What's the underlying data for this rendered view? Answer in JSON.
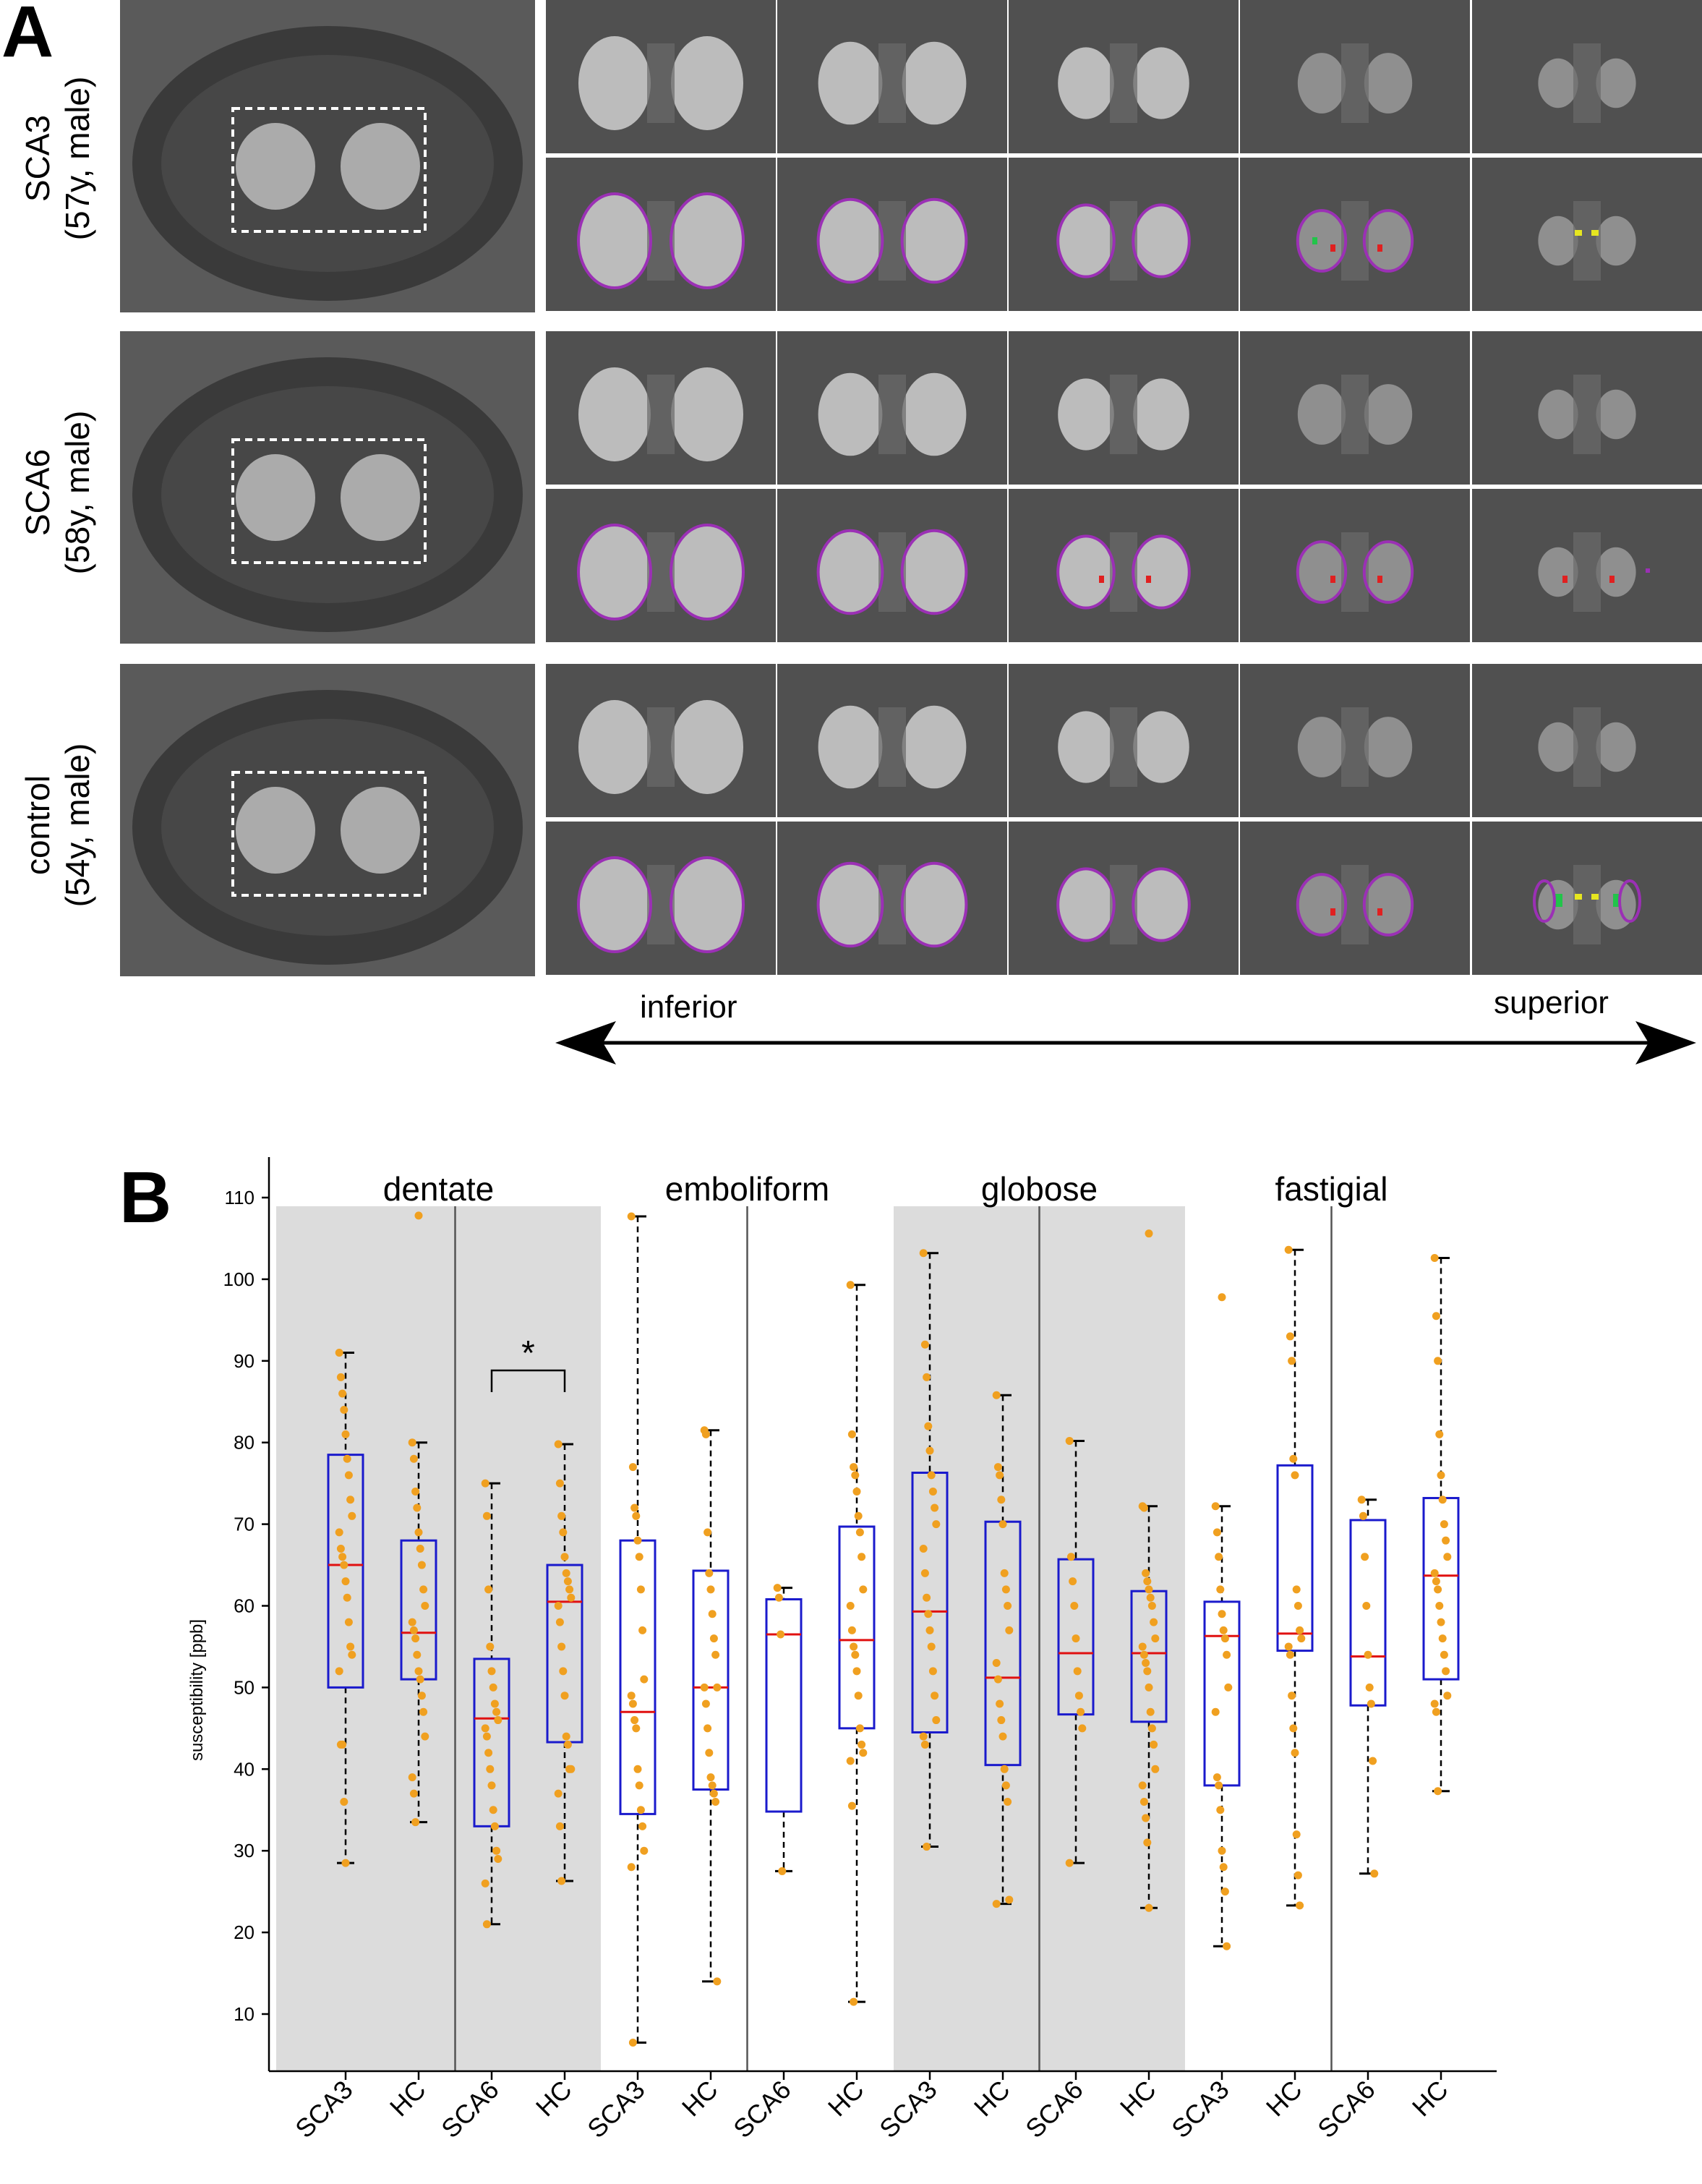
{
  "panel_a": {
    "letter": "A",
    "rows": [
      {
        "line1": "SCA3",
        "line2": "(57y, male)"
      },
      {
        "line1": "SCA6",
        "line2": "(58y, male)"
      },
      {
        "line1": "control",
        "line2": "(54y, male)"
      }
    ],
    "direction": {
      "left": "inferior",
      "right": "superior"
    },
    "colors": {
      "dentate": "#9b30b5",
      "emboliform": "#e02020",
      "globose": "#22c44a",
      "fastigial": "#e6e620"
    }
  },
  "panel_b": {
    "letter": "B"
  },
  "chart_data": {
    "type": "box",
    "ylabel": "susceptibility [ppb]",
    "ylim": [
      0,
      115
    ],
    "yticks": [
      10,
      20,
      30,
      40,
      50,
      60,
      70,
      80,
      90,
      100,
      110
    ],
    "categories": [
      "SCA3",
      "HC",
      "SCA6",
      "HC",
      "SCA3",
      "HC",
      "SCA6",
      "HC",
      "SCA3",
      "HC",
      "SCA6",
      "HC",
      "SCA3",
      "HC",
      "SCA6",
      "HC"
    ],
    "regions": [
      {
        "name": "dentate",
        "shaded": true
      },
      {
        "name": "emboliform",
        "shaded": false
      },
      {
        "name": "globose",
        "shaded": true
      },
      {
        "name": "fastigial",
        "shaded": false
      }
    ],
    "significance": {
      "between": [
        2,
        3
      ],
      "label": "*"
    },
    "boxes": [
      {
        "min": 28.5,
        "q1": 50,
        "median": 65,
        "q3": 78.5,
        "max": 91,
        "points": [
          91,
          88,
          86,
          84,
          81,
          78,
          76,
          73,
          71,
          69,
          67,
          66,
          65,
          63,
          61,
          58,
          55,
          54,
          52,
          43,
          43,
          36,
          28.5
        ]
      },
      {
        "min": 33.5,
        "q1": 51,
        "median": 56.7,
        "q3": 68,
        "max": 80,
        "outliers": [
          107.8
        ],
        "points": [
          80,
          78,
          74,
          72,
          69,
          67,
          65,
          62,
          60,
          58,
          57,
          56,
          54,
          52,
          51,
          49,
          47,
          44,
          39,
          37,
          33.5
        ]
      },
      {
        "min": 21,
        "q1": 33,
        "median": 46.2,
        "q3": 53.5,
        "max": 75,
        "points": [
          75,
          71,
          62,
          55,
          52,
          50,
          48,
          47,
          46,
          45,
          44,
          42,
          40,
          38,
          35,
          33,
          30,
          29,
          26,
          21
        ]
      },
      {
        "min": 26.3,
        "q1": 43.3,
        "median": 60.5,
        "q3": 65,
        "max": 79.8,
        "points": [
          79.8,
          75,
          71,
          69,
          66,
          64,
          63,
          62,
          61,
          60,
          58,
          55,
          52,
          49,
          44,
          43,
          40,
          40,
          37,
          33,
          26.3
        ]
      },
      {
        "min": 6.5,
        "q1": 34.5,
        "median": 47,
        "q3": 68,
        "max": 107.7,
        "points": [
          107.7,
          77,
          72,
          71,
          68,
          66,
          62,
          57,
          51,
          49,
          48,
          46,
          45,
          40,
          38,
          35,
          33,
          30,
          28,
          6.5
        ]
      },
      {
        "min": 14,
        "q1": 37.5,
        "median": 50,
        "q3": 64.3,
        "max": 81.5,
        "points": [
          81.5,
          81,
          69,
          64,
          62,
          59,
          56,
          54,
          50,
          50,
          48,
          45,
          42,
          39,
          38,
          37,
          36,
          14
        ]
      },
      {
        "min": 27.5,
        "q1": 34.8,
        "median": 56.5,
        "q3": 60.8,
        "max": 62.2,
        "points": [
          62.2,
          61,
          56.5,
          27.5
        ]
      },
      {
        "min": 11.5,
        "q1": 45,
        "median": 55.8,
        "q3": 69.7,
        "max": 99.3,
        "points": [
          99.3,
          81,
          77,
          76,
          74,
          71,
          69,
          66,
          62,
          60,
          57,
          55,
          54,
          52,
          49,
          45,
          43,
          42,
          41,
          35.5,
          11.5
        ]
      },
      {
        "min": 30.5,
        "q1": 44.5,
        "median": 59.3,
        "q3": 76.3,
        "max": 103.2,
        "points": [
          103.2,
          92,
          88,
          82,
          79,
          76,
          74,
          72,
          70,
          67,
          64,
          61,
          59,
          57,
          55,
          52,
          49,
          46,
          44,
          43,
          30.5
        ]
      },
      {
        "min": 23.5,
        "q1": 40.5,
        "median": 51.2,
        "q3": 70.3,
        "max": 85.8,
        "points": [
          85.8,
          77,
          76,
          73,
          70,
          64,
          62,
          60,
          57,
          53,
          51,
          48,
          46,
          44,
          40,
          38,
          36,
          24,
          23.5
        ]
      },
      {
        "min": 28.5,
        "q1": 46.7,
        "median": 54.2,
        "q3": 65.7,
        "max": 80.2,
        "points": [
          80.2,
          66,
          63,
          60,
          56,
          52,
          49,
          47,
          45,
          28.5
        ]
      },
      {
        "min": 23,
        "q1": 45.8,
        "median": 54.2,
        "q3": 61.8,
        "max": 72.2,
        "outliers": [
          105.6
        ],
        "points": [
          72.2,
          72,
          64,
          63,
          62,
          61,
          60,
          58,
          56,
          55,
          54,
          53,
          52,
          50,
          47,
          45,
          43,
          40,
          38,
          36,
          34,
          31,
          23
        ]
      },
      {
        "min": 18.3,
        "q1": 38,
        "median": 56.3,
        "q3": 60.5,
        "max": 72.2,
        "outliers": [
          97.8
        ],
        "points": [
          72.2,
          69,
          66,
          62,
          59,
          57,
          56,
          54,
          50,
          47,
          39,
          38,
          35,
          30,
          28,
          25,
          18.3
        ]
      },
      {
        "min": 23.3,
        "q1": 54.5,
        "median": 56.6,
        "q3": 77.2,
        "max": 103.6,
        "points": [
          103.6,
          93,
          90,
          78,
          76,
          62,
          60,
          57,
          56,
          55,
          54,
          49,
          45,
          42,
          32,
          27,
          23.3
        ]
      },
      {
        "min": 27.2,
        "q1": 47.8,
        "median": 53.8,
        "q3": 70.5,
        "max": 73,
        "points": [
          73,
          71,
          66,
          60,
          54,
          50,
          48,
          41,
          27.2
        ]
      },
      {
        "min": 37.3,
        "q1": 51,
        "median": 63.7,
        "q3": 73.2,
        "max": 102.6,
        "points": [
          102.6,
          95.5,
          90,
          81,
          76,
          73,
          70,
          68,
          66,
          64,
          63,
          62,
          60,
          58,
          56,
          54,
          52,
          49,
          48,
          47,
          37.3
        ]
      }
    ]
  }
}
